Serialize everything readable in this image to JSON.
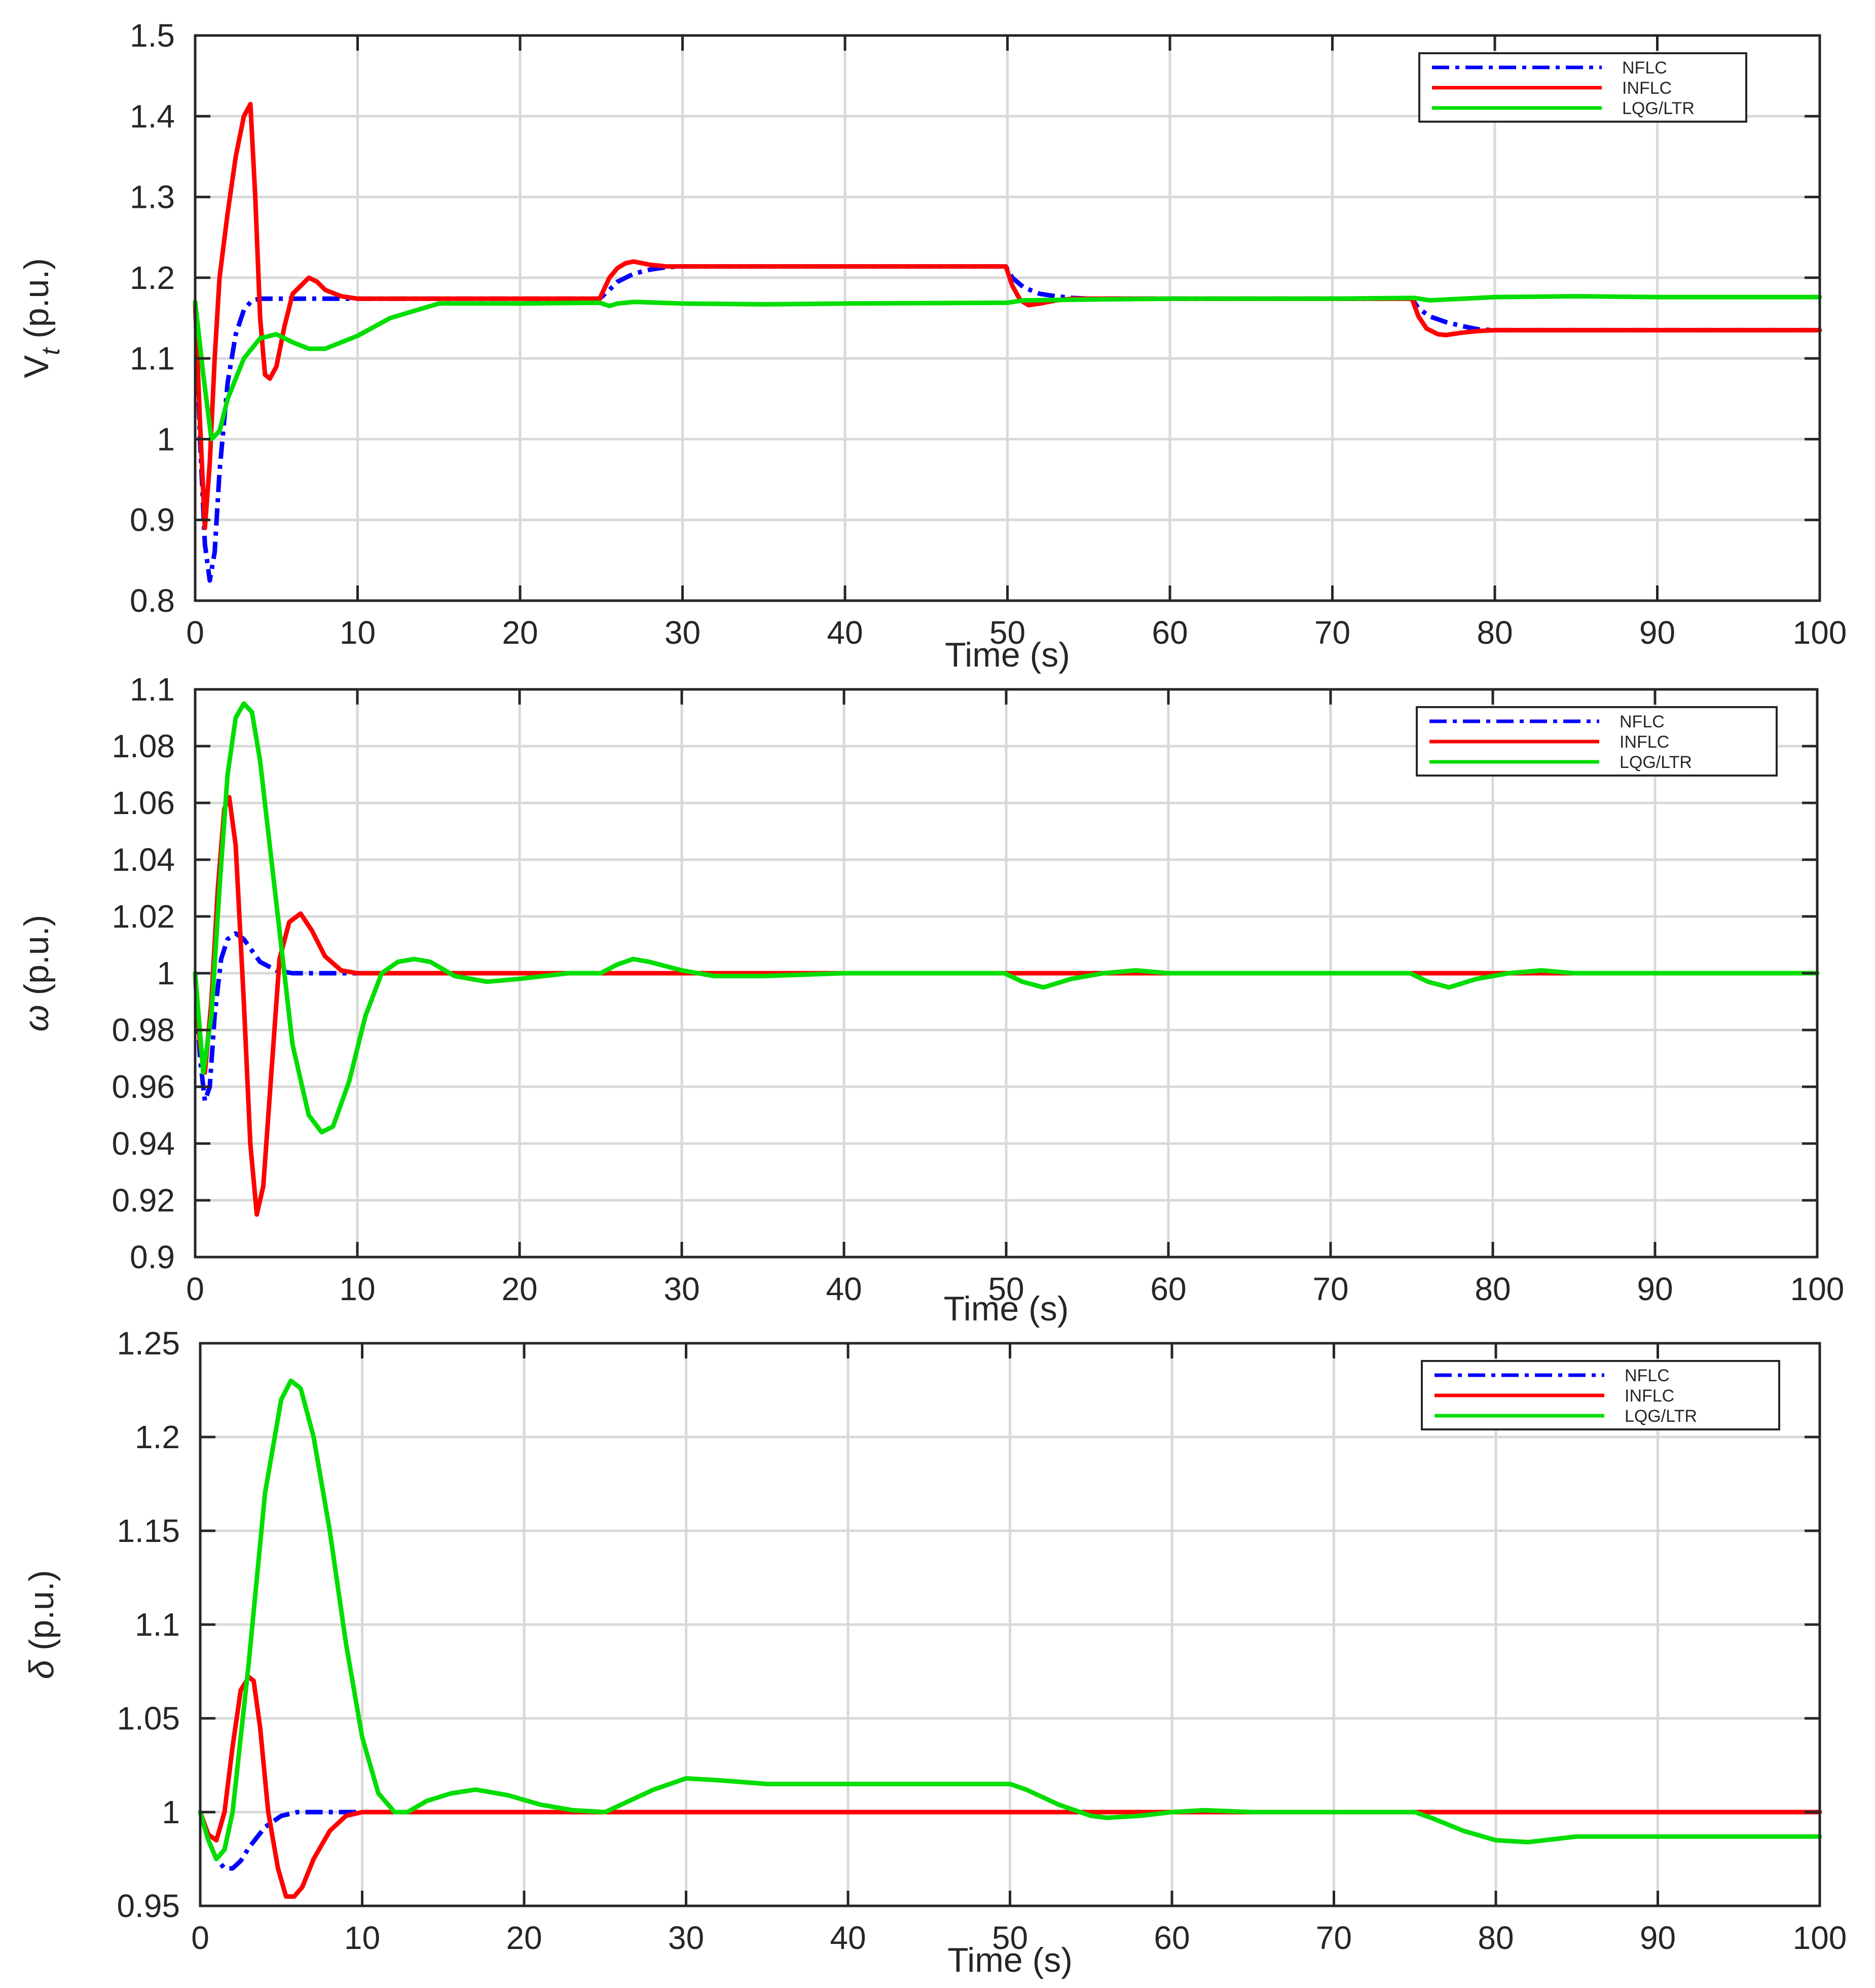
{
  "chart_data": [
    {
      "type": "line",
      "ylabel": "V_t (p.u.)",
      "ylabel_main": "V",
      "ylabel_sub": "t",
      "ylabel_rest": " (p.u.)",
      "xlabel": "Time (s)",
      "xlim": [
        0,
        100
      ],
      "ylim": [
        0.8,
        1.5
      ],
      "xticks": [
        0,
        10,
        20,
        30,
        40,
        50,
        60,
        70,
        80,
        90,
        100
      ],
      "yticks": [
        0.8,
        0.9,
        1,
        1.1,
        1.2,
        1.3,
        1.4,
        1.5
      ],
      "ytick_labels": [
        "0.8",
        "0.9",
        "1",
        "1.1",
        "1.2",
        "1.3",
        "1.4",
        "1.5"
      ],
      "grid": true,
      "legend": "top-right",
      "series": [
        {
          "name": "NFLC",
          "color": "#0000ff",
          "style": "dashdot",
          "x": [
            0,
            0.3,
            0.6,
            0.9,
            1.2,
            1.5,
            2,
            2.5,
            3,
            3.5,
            4,
            5,
            10,
            20,
            24.9,
            25.5,
            26,
            27,
            28,
            29,
            30,
            40,
            49.9,
            50.3,
            51,
            52,
            53,
            54,
            55,
            60,
            70,
            74.9,
            75.3,
            76,
            77,
            78,
            79,
            80,
            90,
            100
          ],
          "y": [
            1.17,
            1.0,
            0.87,
            0.825,
            0.86,
            0.96,
            1.07,
            1.13,
            1.16,
            1.172,
            1.174,
            1.174,
            1.174,
            1.174,
            1.174,
            1.185,
            1.195,
            1.205,
            1.21,
            1.213,
            1.214,
            1.214,
            1.214,
            1.2,
            1.188,
            1.18,
            1.177,
            1.175,
            1.174,
            1.174,
            1.174,
            1.174,
            1.162,
            1.152,
            1.145,
            1.14,
            1.136,
            1.135,
            1.135,
            1.135
          ]
        },
        {
          "name": "INFLC",
          "color": "#ff0000",
          "style": "solid",
          "x": [
            0,
            0.3,
            0.6,
            0.9,
            1.2,
            1.5,
            2,
            2.5,
            3,
            3.4,
            3.7,
            4,
            4.3,
            4.6,
            5,
            5.5,
            6,
            7,
            7.5,
            8,
            9,
            10,
            12,
            15,
            20,
            24.9,
            25.5,
            26,
            26.5,
            27,
            27.5,
            28,
            29,
            30,
            40,
            49.9,
            50.3,
            50.8,
            51.3,
            52,
            53,
            54,
            55,
            60,
            70,
            74.9,
            75.3,
            75.8,
            76.5,
            77,
            78,
            79,
            80,
            90,
            100
          ],
          "y": [
            1.17,
            1.02,
            0.89,
            0.97,
            1.1,
            1.2,
            1.28,
            1.35,
            1.4,
            1.415,
            1.3,
            1.15,
            1.08,
            1.075,
            1.09,
            1.14,
            1.18,
            1.2,
            1.195,
            1.185,
            1.177,
            1.174,
            1.174,
            1.174,
            1.174,
            1.174,
            1.2,
            1.212,
            1.218,
            1.22,
            1.218,
            1.216,
            1.214,
            1.214,
            1.214,
            1.214,
            1.19,
            1.172,
            1.166,
            1.168,
            1.172,
            1.174,
            1.174,
            1.174,
            1.174,
            1.174,
            1.152,
            1.137,
            1.13,
            1.129,
            1.132,
            1.134,
            1.135,
            1.135,
            1.135
          ]
        },
        {
          "name": "LQG/LTR",
          "color": "#00dd00",
          "style": "solid",
          "x": [
            0,
            0.5,
            1,
            1.5,
            2,
            3,
            4,
            5,
            6,
            7,
            8,
            10,
            12,
            15,
            20,
            24.9,
            25.5,
            26,
            27,
            30,
            35,
            40,
            50,
            51,
            55,
            60,
            70,
            75,
            76,
            80,
            85,
            90,
            100
          ],
          "y": [
            1.17,
            1.08,
            1.0,
            1.01,
            1.05,
            1.1,
            1.125,
            1.13,
            1.12,
            1.112,
            1.112,
            1.128,
            1.15,
            1.168,
            1.168,
            1.169,
            1.165,
            1.168,
            1.17,
            1.168,
            1.167,
            1.168,
            1.169,
            1.172,
            1.173,
            1.174,
            1.174,
            1.175,
            1.172,
            1.176,
            1.177,
            1.176,
            1.176
          ]
        }
      ]
    },
    {
      "type": "line",
      "ylabel": "ω (p.u.)",
      "ylabel_main": "ω",
      "ylabel_sub": "",
      "ylabel_rest": " (p.u.)",
      "xlabel": "Time (s)",
      "xlim": [
        0,
        100
      ],
      "ylim": [
        0.9,
        1.1
      ],
      "xticks": [
        0,
        10,
        20,
        30,
        40,
        50,
        60,
        70,
        80,
        90,
        100
      ],
      "yticks": [
        0.9,
        0.92,
        0.94,
        0.96,
        0.98,
        1,
        1.02,
        1.04,
        1.06,
        1.08,
        1.1
      ],
      "ytick_labels": [
        "0.9",
        "0.92",
        "0.94",
        "0.96",
        "0.98",
        "1",
        "1.02",
        "1.04",
        "1.06",
        "1.08",
        "1.1"
      ],
      "grid": true,
      "legend": "top-right",
      "series": [
        {
          "name": "NFLC",
          "color": "#0000ff",
          "style": "dashdot",
          "x": [
            0,
            0.3,
            0.6,
            0.9,
            1.2,
            1.6,
            2,
            2.5,
            3,
            3.5,
            4,
            5,
            6,
            7,
            8,
            9,
            10,
            20,
            30,
            40,
            50,
            60,
            70,
            80,
            90,
            100
          ],
          "y": [
            1.0,
            0.97,
            0.955,
            0.96,
            0.985,
            1.005,
            1.012,
            1.014,
            1.012,
            1.008,
            1.004,
            1.001,
            1.0,
            1.0,
            1.0,
            1.0,
            1.0,
            1.0,
            1.0,
            1.0,
            1.0,
            1.0,
            1.0,
            1.0,
            1.0,
            1.0
          ]
        },
        {
          "name": "INFLC",
          "color": "#ff0000",
          "style": "solid",
          "x": [
            0,
            0.3,
            0.6,
            1,
            1.4,
            1.8,
            2.1,
            2.5,
            3,
            3.4,
            3.8,
            4.2,
            4.7,
            5.2,
            5.8,
            6.5,
            7.2,
            8,
            9,
            10,
            11,
            12,
            20,
            30,
            40,
            50,
            60,
            70,
            80,
            90,
            100
          ],
          "y": [
            1.0,
            0.975,
            0.965,
            0.99,
            1.03,
            1.058,
            1.062,
            1.045,
            0.99,
            0.94,
            0.915,
            0.925,
            0.965,
            1.005,
            1.018,
            1.021,
            1.015,
            1.006,
            1.001,
            1.0,
            1.0,
            1.0,
            1.0,
            1.0,
            1.0,
            1.0,
            1.0,
            1.0,
            1.0,
            1.0,
            1.0
          ]
        },
        {
          "name": "LQG/LTR",
          "color": "#00dd00",
          "style": "solid",
          "x": [
            0,
            0.5,
            1,
            1.5,
            2,
            2.5,
            3,
            3.5,
            4,
            5,
            6,
            7,
            7.8,
            8.5,
            9.5,
            10.5,
            11.5,
            12.5,
            13.5,
            14.5,
            16,
            18,
            20,
            23,
            25,
            26,
            27,
            28,
            30,
            32,
            35,
            40,
            49.9,
            51,
            52.3,
            54,
            56,
            58,
            60,
            65,
            70,
            74.9,
            76,
            77.3,
            79,
            81,
            83,
            85,
            88,
            90,
            100
          ],
          "y": [
            1.0,
            0.965,
            0.985,
            1.03,
            1.07,
            1.09,
            1.095,
            1.092,
            1.075,
            1.025,
            0.975,
            0.95,
            0.944,
            0.946,
            0.962,
            0.985,
            1.0,
            1.004,
            1.005,
            1.004,
            0.999,
            0.997,
            0.998,
            1.0,
            1.0,
            1.003,
            1.005,
            1.004,
            1.001,
            0.999,
            0.999,
            1.0,
            1.0,
            0.997,
            0.995,
            0.998,
            1.0,
            1.001,
            1.0,
            1.0,
            1.0,
            1.0,
            0.997,
            0.995,
            0.998,
            1.0,
            1.001,
            1.0,
            1.0,
            1.0,
            1.0
          ]
        }
      ]
    },
    {
      "type": "line",
      "ylabel": "δ (p.u.)",
      "ylabel_main": "δ",
      "ylabel_sub": "",
      "ylabel_rest": " (p.u.)",
      "xlabel": "Time (s)",
      "xlim": [
        0,
        100
      ],
      "ylim": [
        0.95,
        1.25
      ],
      "xticks": [
        0,
        10,
        20,
        30,
        40,
        50,
        60,
        70,
        80,
        90,
        100
      ],
      "yticks": [
        0.95,
        1,
        1.05,
        1.1,
        1.15,
        1.2,
        1.25
      ],
      "ytick_labels": [
        "0.95",
        "1",
        "1.05",
        "1.1",
        "1.15",
        "1.2",
        "1.25"
      ],
      "grid": true,
      "legend": "top-right",
      "series": [
        {
          "name": "NFLC",
          "color": "#0000ff",
          "style": "dashdot",
          "x": [
            0,
            0.5,
            1,
            1.5,
            2,
            2.5,
            3,
            4,
            5,
            6,
            7,
            8,
            10,
            20,
            30,
            40,
            50,
            60,
            70,
            80,
            90,
            100
          ],
          "y": [
            1.0,
            0.985,
            0.975,
            0.97,
            0.97,
            0.974,
            0.981,
            0.992,
            0.998,
            1.0,
            1.0,
            1.0,
            1.0,
            1.0,
            1.0,
            1.0,
            1.0,
            1.0,
            1.0,
            1.0,
            1.0,
            1.0
          ]
        },
        {
          "name": "INFLC",
          "color": "#ff0000",
          "style": "solid",
          "x": [
            0,
            0.5,
            1,
            1.5,
            2,
            2.5,
            3,
            3.3,
            3.7,
            4.2,
            4.8,
            5.3,
            5.8,
            6.3,
            7,
            8,
            9,
            10,
            11,
            12,
            20,
            30,
            40,
            50,
            60,
            70,
            80,
            90,
            100
          ],
          "y": [
            1.0,
            0.988,
            0.985,
            1.0,
            1.035,
            1.065,
            1.072,
            1.07,
            1.045,
            1.0,
            0.97,
            0.955,
            0.955,
            0.96,
            0.975,
            0.99,
            0.998,
            1.0,
            1.0,
            1.0,
            1.0,
            1.0,
            1.0,
            1.0,
            1.0,
            1.0,
            1.0,
            1.0,
            1.0
          ]
        },
        {
          "name": "LQG/LTR",
          "color": "#00dd00",
          "style": "solid",
          "x": [
            0,
            0.5,
            1,
            1.5,
            2,
            3,
            4,
            5,
            5.6,
            6.2,
            7,
            8,
            9,
            10,
            11,
            12,
            12.8,
            14,
            15.5,
            17,
            19,
            21,
            23,
            25,
            26,
            28,
            30,
            32,
            35,
            40,
            45,
            50,
            51,
            53,
            55,
            56,
            58,
            60,
            62,
            65,
            70,
            75,
            76,
            78,
            80,
            82,
            85,
            90,
            100
          ],
          "y": [
            1.0,
            0.985,
            0.975,
            0.98,
            1.0,
            1.08,
            1.17,
            1.22,
            1.23,
            1.226,
            1.2,
            1.15,
            1.09,
            1.04,
            1.01,
            1.0,
            1.0,
            1.006,
            1.01,
            1.012,
            1.009,
            1.004,
            1.001,
            1.0,
            1.004,
            1.012,
            1.018,
            1.017,
            1.015,
            1.015,
            1.015,
            1.015,
            1.012,
            1.004,
            0.998,
            0.997,
            0.998,
            1.0,
            1.001,
            1.0,
            1.0,
            1.0,
            0.997,
            0.99,
            0.985,
            0.984,
            0.987,
            0.987,
            0.987
          ]
        }
      ]
    }
  ]
}
